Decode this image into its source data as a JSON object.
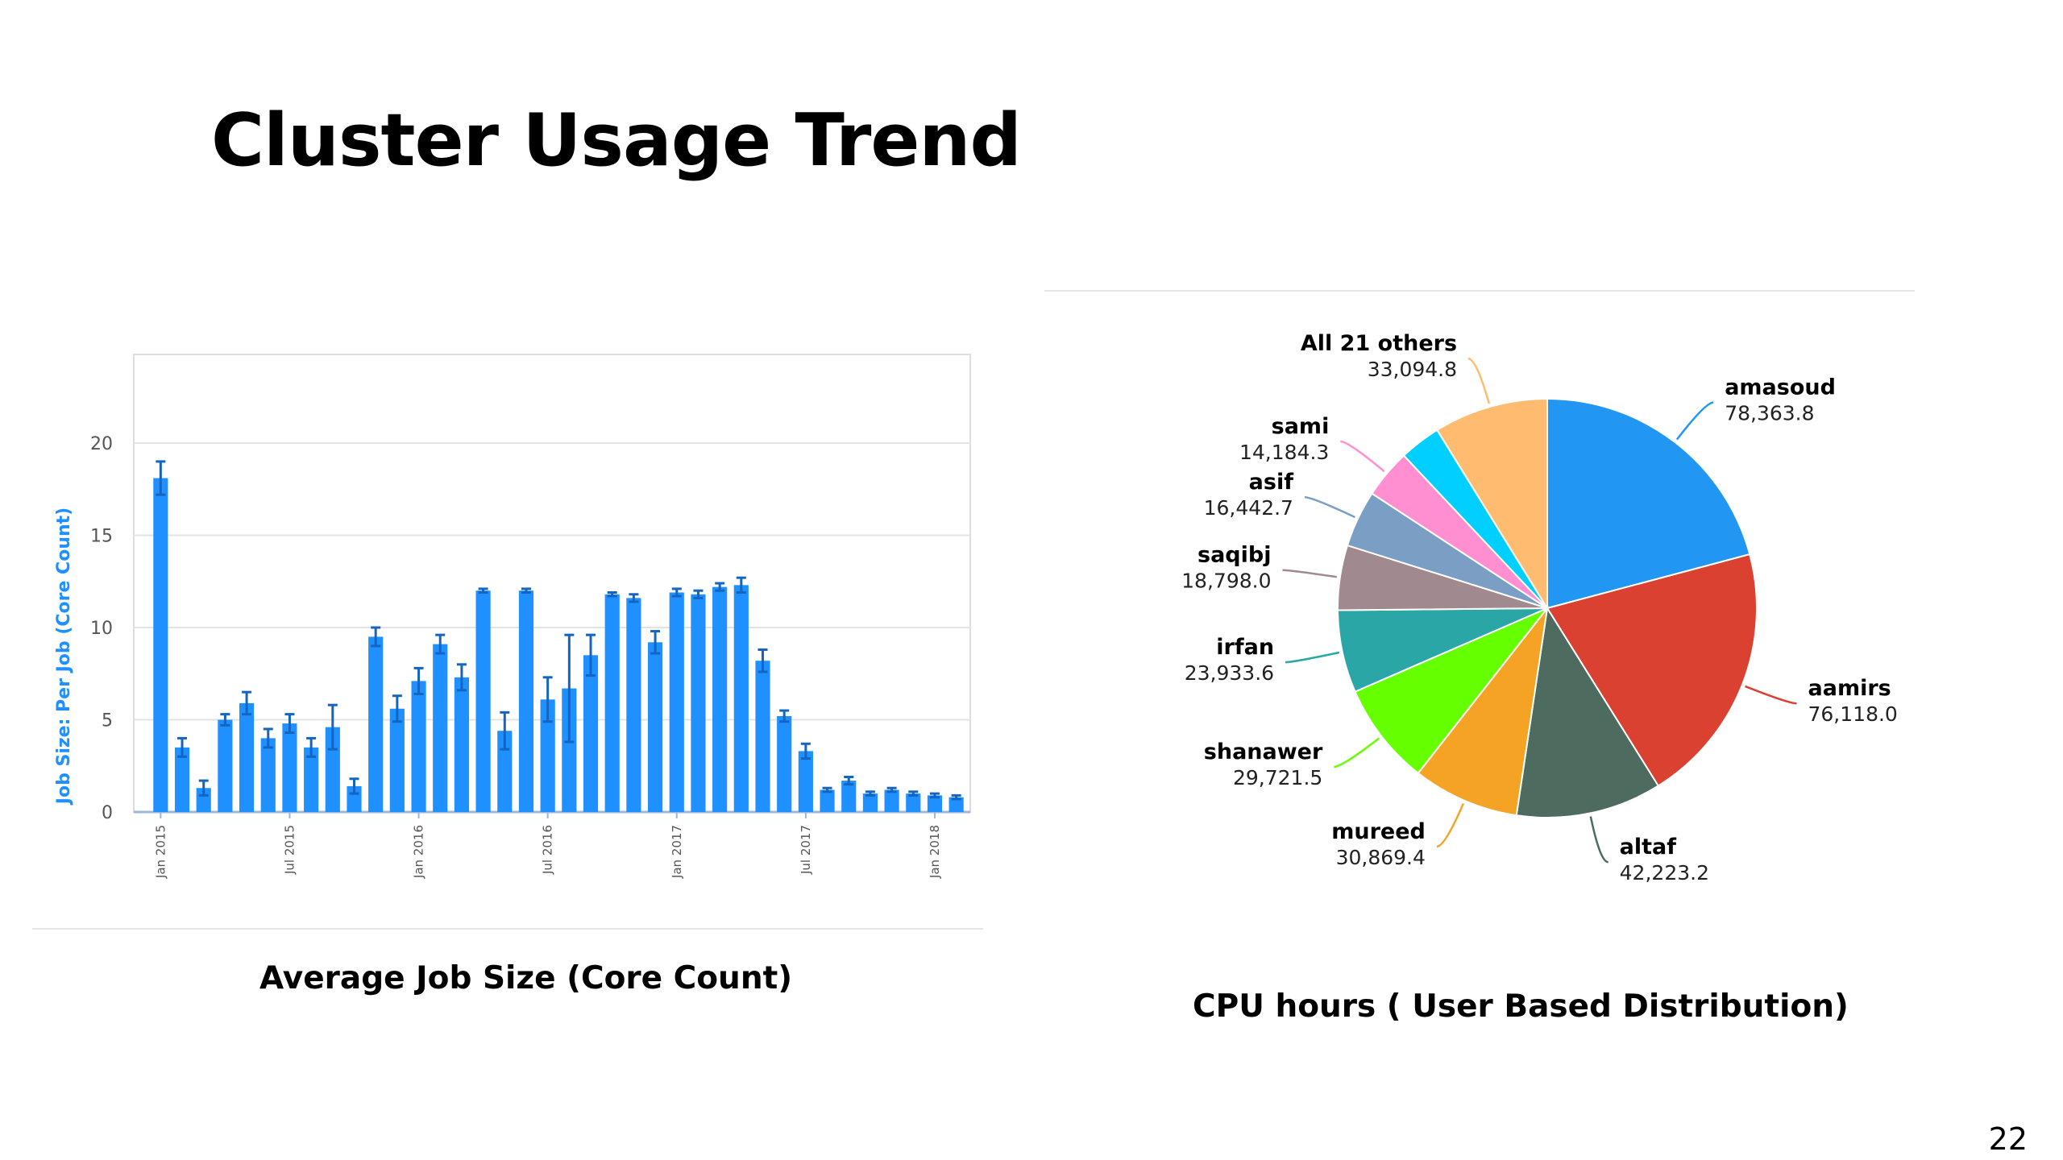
{
  "slide": {
    "title": "Cluster Usage Trend",
    "page_number": "22"
  },
  "chart_data": [
    {
      "type": "bar",
      "caption": "Average Job Size (Core Count)",
      "ylabel": "Job Size: Per Job (Core Count)",
      "ylim": [
        0,
        25
      ],
      "yticks": [
        "0",
        "5",
        "10",
        "15",
        "20"
      ],
      "grid": true,
      "color": "#1e90ff",
      "error_bars": true,
      "x_tick_labels": [
        "Jan 2015",
        "Jul 2015",
        "Jan 2016",
        "Jul 2016",
        "Jan 2017",
        "Jul 2017",
        "Jan 2018"
      ],
      "categories": [
        "Jan 2015",
        "Feb 2015",
        "Mar 2015",
        "Apr 2015",
        "May 2015",
        "Jun 2015",
        "Jul 2015",
        "Aug 2015",
        "Sep 2015",
        "Oct 2015",
        "Nov 2015",
        "Dec 2015",
        "Jan 2016",
        "Feb 2016",
        "Mar 2016",
        "Apr 2016",
        "May 2016",
        "Jun 2016",
        "Jul 2016",
        "Aug 2016",
        "Sep 2016",
        "Oct 2016",
        "Nov 2016",
        "Dec 2016",
        "Jan 2017",
        "Feb 2017",
        "Mar 2017",
        "Apr 2017",
        "May 2017",
        "Jun 2017",
        "Jul 2017",
        "Aug 2017",
        "Sep 2017",
        "Oct 2017",
        "Nov 2017",
        "Dec 2017",
        "Jan 2018",
        "Feb 2018"
      ],
      "values": [
        18.1,
        3.5,
        1.3,
        5.0,
        5.9,
        4.0,
        4.8,
        3.5,
        4.6,
        1.4,
        9.5,
        5.6,
        7.1,
        9.1,
        7.3,
        12.0,
        4.4,
        12.0,
        6.1,
        6.7,
        8.5,
        11.8,
        11.6,
        9.2,
        11.9,
        11.8,
        12.2,
        12.3,
        8.2,
        5.2,
        3.3,
        1.2,
        1.7,
        1.0,
        1.2,
        1.0,
        0.9,
        0.8
      ],
      "errors": [
        0.9,
        0.5,
        0.4,
        0.3,
        0.6,
        0.5,
        0.5,
        0.5,
        1.2,
        0.4,
        0.5,
        0.7,
        0.7,
        0.5,
        0.7,
        0.1,
        1.0,
        0.1,
        1.2,
        2.9,
        1.1,
        0.1,
        0.2,
        0.6,
        0.2,
        0.2,
        0.2,
        0.4,
        0.6,
        0.3,
        0.4,
        0.1,
        0.2,
        0.1,
        0.1,
        0.1,
        0.1,
        0.1
      ]
    },
    {
      "type": "pie",
      "caption": "CPU hours ( User Based Distribution)",
      "slices": [
        {
          "name": "amasoud",
          "value": 78363.8,
          "label": "78,363.8",
          "color": "#2196f3"
        },
        {
          "name": "aamirs",
          "value": 76118.0,
          "label": "76,118.0",
          "color": "#db4130"
        },
        {
          "name": "altaf",
          "value": 42223.2,
          "label": "42,223.2",
          "color": "#4d6b5f"
        },
        {
          "name": "mureed",
          "value": 30869.4,
          "label": "30,869.4",
          "color": "#f4a324"
        },
        {
          "name": "shanawer",
          "value": 29721.5,
          "label": "29,721.5",
          "color": "#66ff00"
        },
        {
          "name": "irfan",
          "value": 23933.6,
          "label": "23,933.6",
          "color": "#2aa6a6"
        },
        {
          "name": "saqibj",
          "value": 18798.0,
          "label": "18,798.0",
          "color": "#a08a90"
        },
        {
          "name": "asif",
          "value": 16442.7,
          "label": "16,442.7",
          "color": "#7a9ec4"
        },
        {
          "name": "sami",
          "value": 14184.3,
          "label": "14,184.3",
          "color": "#ff8fd1"
        },
        {
          "name": "",
          "value": 12000,
          "label": "",
          "color": "#00cfff"
        },
        {
          "name": "All 21 others",
          "value": 33094.8,
          "label": "33,094.8",
          "color": "#ffbb70"
        }
      ]
    }
  ]
}
